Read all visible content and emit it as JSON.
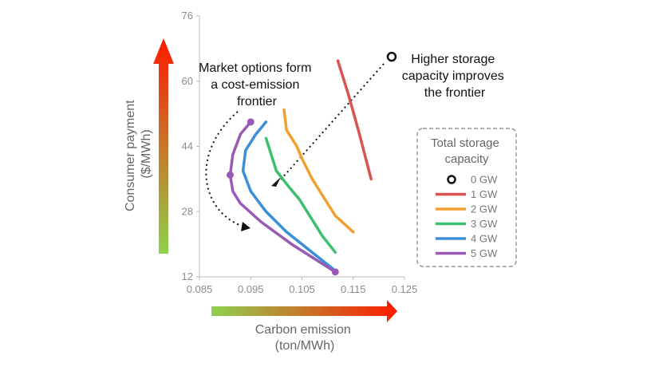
{
  "chart_data": {
    "type": "line",
    "title": "",
    "xlabel": [
      "Carbon emission",
      "(ton/MWh)"
    ],
    "ylabel": [
      "Consumer payment",
      "($/MWh)"
    ],
    "xlim": [
      0.085,
      0.125
    ],
    "ylim": [
      12,
      76
    ],
    "x_ticks": [
      "0.085",
      "0.095",
      "0.105",
      "0.115",
      "0.125"
    ],
    "y_ticks": [
      "12",
      "28",
      "44",
      "60",
      "76"
    ],
    "grid": false,
    "legend": {
      "title": [
        "Total storage",
        "capacity"
      ],
      "placement": "right",
      "entries": [
        "0 GW",
        "1 GW",
        "2 GW",
        "3 GW",
        "4 GW",
        "5 GW"
      ]
    },
    "series": [
      {
        "name": "0 GW",
        "color": "#111111",
        "marker": "open-circle",
        "points": [
          [
            0.1225,
            66.0
          ]
        ]
      },
      {
        "name": "1 GW",
        "color": "#d9534f",
        "points": [
          [
            0.112,
            65.0
          ],
          [
            0.114,
            57.0
          ],
          [
            0.116,
            48.0
          ],
          [
            0.1185,
            36.0
          ]
        ]
      },
      {
        "name": "2 GW",
        "color": "#f0a030",
        "points": [
          [
            0.1015,
            53.0
          ],
          [
            0.102,
            48.0
          ],
          [
            0.104,
            44.0
          ],
          [
            0.105,
            41.0
          ],
          [
            0.107,
            36.0
          ],
          [
            0.11,
            30.0
          ],
          [
            0.1115,
            27.0
          ],
          [
            0.115,
            23.0
          ]
        ]
      },
      {
        "name": "3 GW",
        "color": "#3cc070",
        "points": [
          [
            0.098,
            46.0
          ],
          [
            0.099,
            42.0
          ],
          [
            0.1,
            38.0
          ],
          [
            0.1025,
            34.0
          ],
          [
            0.1045,
            31.0
          ],
          [
            0.107,
            26.0
          ],
          [
            0.109,
            22.0
          ],
          [
            0.1115,
            18.0
          ]
        ]
      },
      {
        "name": "4 GW",
        "color": "#3b8fd6",
        "points": [
          [
            0.098,
            50.0
          ],
          [
            0.096,
            47.0
          ],
          [
            0.094,
            43.0
          ],
          [
            0.0935,
            38.0
          ],
          [
            0.095,
            33.0
          ],
          [
            0.098,
            28.0
          ],
          [
            0.102,
            23.0
          ],
          [
            0.106,
            19.0
          ],
          [
            0.111,
            14.0
          ]
        ]
      },
      {
        "name": "5 GW",
        "color": "#9b59b6",
        "points": [
          [
            0.095,
            50.0
          ],
          [
            0.093,
            47.0
          ],
          [
            0.0915,
            42.0
          ],
          [
            0.091,
            37.0
          ],
          [
            0.0915,
            33.0
          ],
          [
            0.093,
            30.0
          ],
          [
            0.097,
            25.5
          ],
          [
            0.103,
            20.0
          ],
          [
            0.108,
            16.0
          ],
          [
            0.1115,
            13.2
          ]
        ],
        "marked_points": [
          [
            0.095,
            50.0
          ],
          [
            0.091,
            37.0
          ],
          [
            0.1115,
            13.2
          ]
        ]
      }
    ],
    "annotations": [
      {
        "text": [
          "Market options form",
          "a cost-emission",
          "frontier"
        ]
      },
      {
        "text": [
          "Higher storage",
          "capacity improves",
          "the frontier"
        ]
      }
    ],
    "colors": {
      "gradient_start": "#8ed14f",
      "gradient_end": "#ff1a00"
    }
  }
}
